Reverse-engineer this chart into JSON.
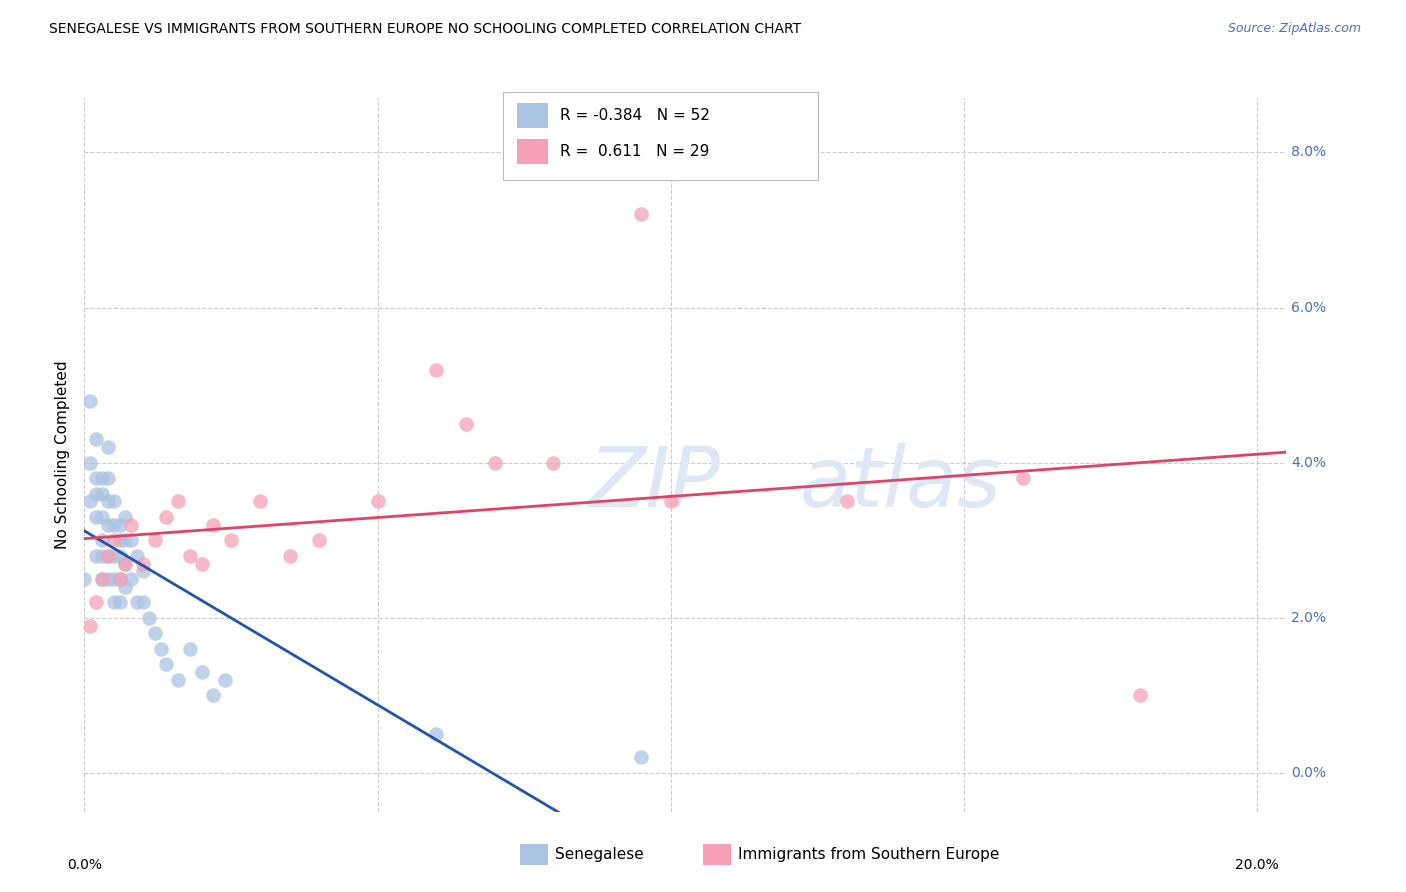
{
  "title": "SENEGALESE VS IMMIGRANTS FROM SOUTHERN EUROPE NO SCHOOLING COMPLETED CORRELATION CHART",
  "source": "Source: ZipAtlas.com",
  "ylabel": "No Schooling Completed",
  "legend_label1": "Senegalese",
  "legend_label2": "Immigrants from Southern Europe",
  "R1": "-0.384",
  "N1": "52",
  "R2": "0.611",
  "N2": "29",
  "color_blue": "#aac4e2",
  "color_pink": "#f5a0b5",
  "line_blue": "#2255aa",
  "line_pink": "#dd4466",
  "watermark_color": "#dce8f5",
  "bg_color": "#ffffff",
  "grid_color": "#cccccc",
  "right_label_color": "#4472c4",
  "title_color": "#000000",
  "senegalese_x": [
    0.0,
    0.001,
    0.001,
    0.001,
    0.002,
    0.002,
    0.002,
    0.002,
    0.002,
    0.003,
    0.003,
    0.003,
    0.003,
    0.003,
    0.003,
    0.004,
    0.004,
    0.004,
    0.004,
    0.004,
    0.004,
    0.005,
    0.005,
    0.005,
    0.005,
    0.005,
    0.006,
    0.006,
    0.006,
    0.006,
    0.006,
    0.007,
    0.007,
    0.007,
    0.007,
    0.008,
    0.008,
    0.009,
    0.009,
    0.01,
    0.01,
    0.011,
    0.012,
    0.013,
    0.014,
    0.016,
    0.018,
    0.02,
    0.022,
    0.024,
    0.06,
    0.095
  ],
  "senegalese_y": [
    0.025,
    0.048,
    0.04,
    0.035,
    0.043,
    0.038,
    0.036,
    0.033,
    0.028,
    0.038,
    0.036,
    0.033,
    0.03,
    0.028,
    0.025,
    0.042,
    0.038,
    0.035,
    0.032,
    0.028,
    0.025,
    0.035,
    0.032,
    0.028,
    0.025,
    0.022,
    0.032,
    0.03,
    0.028,
    0.025,
    0.022,
    0.033,
    0.03,
    0.027,
    0.024,
    0.03,
    0.025,
    0.028,
    0.022,
    0.026,
    0.022,
    0.02,
    0.018,
    0.016,
    0.014,
    0.012,
    0.016,
    0.013,
    0.01,
    0.012,
    0.005,
    0.002
  ],
  "southern_europe_x": [
    0.001,
    0.002,
    0.003,
    0.004,
    0.005,
    0.006,
    0.007,
    0.008,
    0.01,
    0.012,
    0.014,
    0.016,
    0.018,
    0.02,
    0.022,
    0.025,
    0.03,
    0.035,
    0.04,
    0.05,
    0.06,
    0.065,
    0.07,
    0.08,
    0.095,
    0.1,
    0.13,
    0.16,
    0.18
  ],
  "southern_europe_y": [
    0.019,
    0.022,
    0.025,
    0.028,
    0.03,
    0.025,
    0.027,
    0.032,
    0.027,
    0.03,
    0.033,
    0.035,
    0.028,
    0.027,
    0.032,
    0.03,
    0.035,
    0.028,
    0.03,
    0.035,
    0.052,
    0.045,
    0.04,
    0.04,
    0.072,
    0.035,
    0.035,
    0.038,
    0.01
  ],
  "xlim": [
    0.0,
    0.205
  ],
  "ylim": [
    -0.005,
    0.087
  ],
  "ytick_vals": [
    0.0,
    0.02,
    0.04,
    0.06,
    0.08
  ],
  "xtick_vals": [
    0.0,
    0.05,
    0.1,
    0.15,
    0.2
  ],
  "right_ytick_labels": [
    "0.0%",
    "2.0%",
    "4.0%",
    "6.0%",
    "8.0%"
  ],
  "blue_line_x_end": 0.185,
  "pink_line_x_start": 0.0,
  "pink_line_x_end": 0.205
}
